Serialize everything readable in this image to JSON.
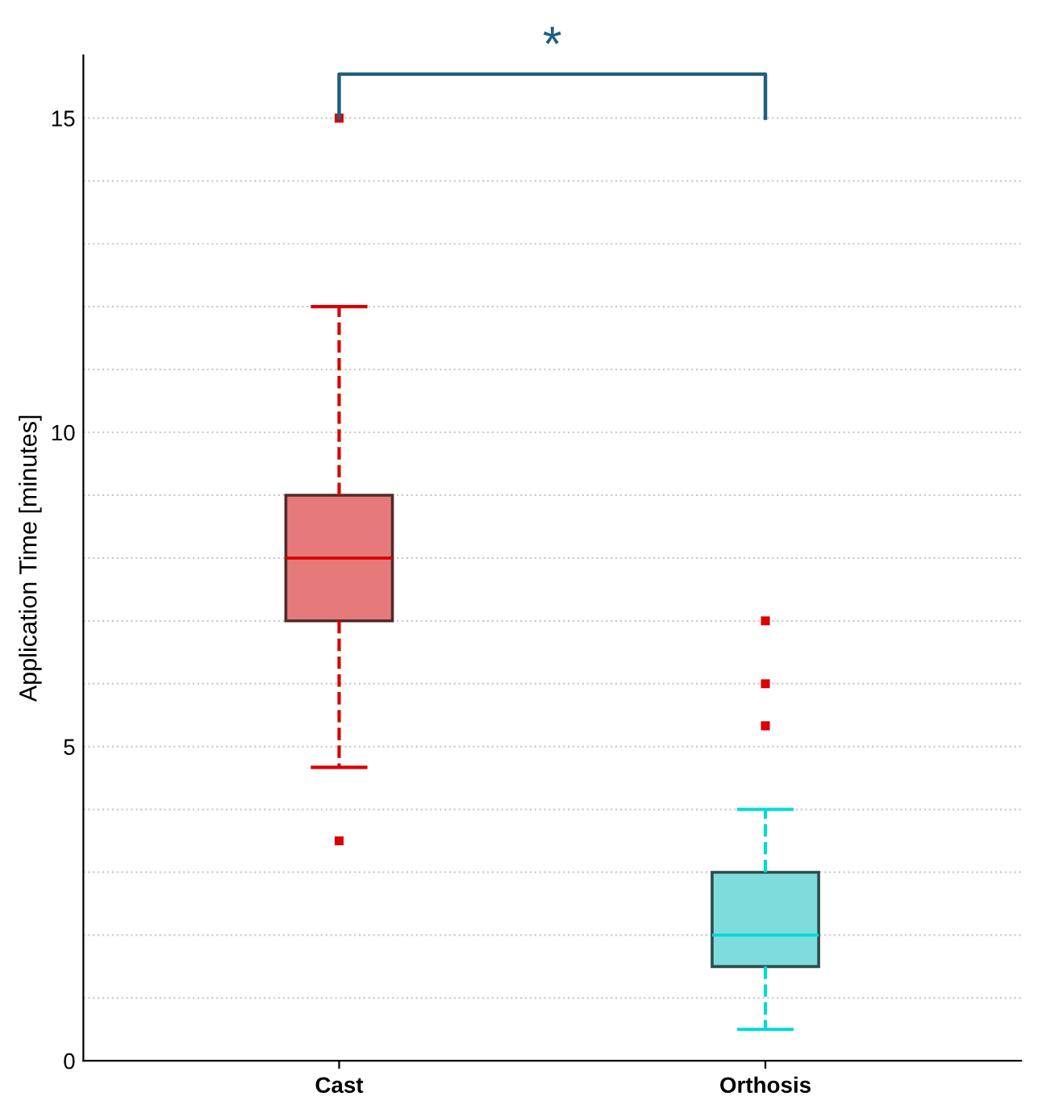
{
  "chart_data": {
    "type": "box",
    "ylabel": "Application Time [minutes]",
    "categories": [
      "Cast",
      "Orthosis"
    ],
    "boxes": [
      {
        "low": 4.67,
        "q1": 7,
        "median": 8,
        "q3": 9,
        "high": 12,
        "outliers": [
          15,
          3.5
        ]
      },
      {
        "low": 0.5,
        "q1": 1.5,
        "median": 2,
        "q3": 3,
        "high": 4,
        "outliers": [
          7,
          6,
          5.33
        ]
      }
    ],
    "colors": [
      "#e67a7a",
      "#7fdcdc"
    ],
    "ylim": [
      0,
      16
    ],
    "yticks": [
      0,
      {
        "value": 1,
        "label": null
      },
      {
        "value": 2,
        "label": null
      },
      {
        "value": 3,
        "label": null
      },
      {
        "value": 4,
        "label": null
      },
      5,
      {
        "value": 6,
        "label": null
      },
      {
        "value": 7,
        "label": null
      },
      {
        "value": 8,
        "label": null
      },
      {
        "value": 9,
        "label": null
      },
      10,
      {
        "value": 11,
        "label": null
      },
      {
        "value": 12,
        "label": null
      },
      {
        "value": 13,
        "label": null
      },
      {
        "value": 14,
        "label": null
      },
      15
    ],
    "grid": "y",
    "annotations": [
      "*"
    ]
  }
}
